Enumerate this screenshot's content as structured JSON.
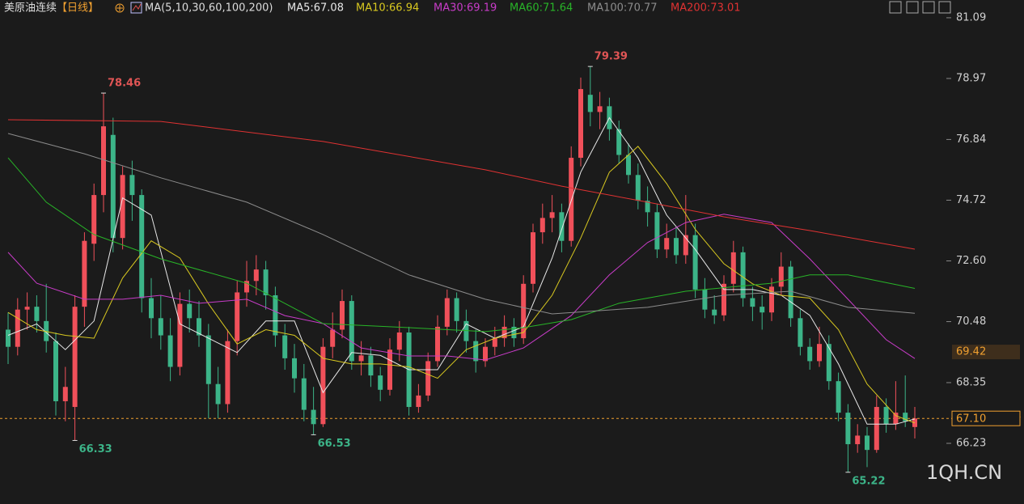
{
  "chart_data": {
    "type": "candlestick",
    "title": "美原油连续",
    "period": "【日线】",
    "ma_label": "MA(5,10,30,60,100,200)",
    "watermark": "1QH.CN",
    "up_color": "#f0505a",
    "down_color": "#3cb488",
    "ylim": [
      64.62,
      81.71
    ],
    "yticks": [
      81.09,
      78.97,
      76.84,
      74.72,
      {
        "value": 72.6,
        "label": "72.60"
      },
      70.48,
      68.35,
      66.23
    ],
    "grid": false,
    "candles": [
      [
        70.2,
        70.8,
        69.0,
        69.6
      ],
      [
        69.6,
        71.3,
        69.3,
        70.9
      ],
      [
        70.9,
        71.5,
        70.2,
        71.0
      ],
      [
        71.0,
        71.4,
        70.1,
        70.5
      ],
      [
        70.5,
        71.8,
        69.4,
        69.8
      ],
      [
        69.8,
        70.1,
        67.2,
        67.7
      ],
      [
        67.7,
        68.9,
        67.0,
        68.2
      ],
      [
        67.5,
        71.4,
        66.33,
        71.0
      ],
      [
        71.0,
        73.6,
        70.3,
        73.3
      ],
      [
        73.2,
        75.3,
        72.6,
        74.9
      ],
      [
        74.9,
        78.46,
        74.3,
        77.3
      ],
      [
        77.0,
        77.6,
        72.9,
        73.4
      ],
      [
        73.4,
        75.9,
        73.0,
        75.6
      ],
      [
        75.6,
        76.1,
        74.0,
        74.9
      ],
      [
        74.9,
        75.1,
        70.8,
        71.3
      ],
      [
        71.3,
        72.0,
        69.9,
        70.6
      ],
      [
        70.6,
        71.4,
        69.5,
        70.0
      ],
      [
        70.0,
        70.6,
        68.4,
        68.9
      ],
      [
        68.9,
        71.5,
        68.6,
        71.1
      ],
      [
        71.1,
        71.6,
        70.1,
        70.6
      ],
      [
        70.6,
        71.2,
        69.6,
        70.0
      ],
      [
        70.0,
        70.4,
        67.1,
        68.3
      ],
      [
        68.3,
        68.9,
        67.1,
        67.6
      ],
      [
        67.6,
        70.2,
        67.3,
        69.8
      ],
      [
        69.8,
        71.9,
        69.3,
        71.5
      ],
      [
        71.5,
        72.6,
        71.0,
        71.9
      ],
      [
        71.9,
        72.8,
        71.4,
        72.3
      ],
      [
        72.3,
        72.6,
        70.9,
        71.4
      ],
      [
        71.4,
        71.7,
        69.6,
        70.0
      ],
      [
        70.0,
        70.4,
        68.8,
        69.2
      ],
      [
        69.2,
        69.7,
        68.0,
        68.5
      ],
      [
        68.5,
        69.0,
        67.0,
        67.4
      ],
      [
        67.4,
        68.2,
        66.53,
        66.9
      ],
      [
        66.9,
        69.9,
        66.8,
        69.6
      ],
      [
        69.6,
        70.8,
        69.2,
        70.2
      ],
      [
        70.2,
        71.6,
        69.9,
        71.2
      ],
      [
        71.2,
        71.4,
        68.8,
        69.1
      ],
      [
        69.1,
        69.8,
        68.6,
        69.3
      ],
      [
        69.3,
        69.6,
        68.2,
        68.6
      ],
      [
        68.6,
        68.9,
        67.7,
        68.1
      ],
      [
        68.1,
        69.9,
        67.9,
        69.5
      ],
      [
        69.5,
        70.5,
        69.1,
        70.1
      ],
      [
        70.1,
        70.3,
        67.2,
        67.5
      ],
      [
        67.5,
        68.3,
        67.3,
        67.9
      ],
      [
        67.9,
        69.4,
        67.7,
        69.1
      ],
      [
        69.1,
        70.7,
        68.9,
        70.3
      ],
      [
        70.3,
        71.6,
        70.0,
        71.3
      ],
      [
        71.3,
        71.5,
        70.1,
        70.5
      ],
      [
        70.5,
        70.9,
        69.4,
        69.8
      ],
      [
        69.8,
        70.2,
        68.7,
        69.1
      ],
      [
        69.1,
        69.9,
        68.9,
        69.6
      ],
      [
        69.6,
        70.3,
        69.3,
        69.9
      ],
      [
        69.9,
        70.7,
        69.6,
        70.3
      ],
      [
        70.3,
        70.6,
        69.6,
        69.9
      ],
      [
        69.9,
        72.1,
        69.7,
        71.8
      ],
      [
        71.8,
        73.9,
        71.5,
        73.6
      ],
      [
        73.6,
        74.6,
        73.2,
        74.1
      ],
      [
        74.1,
        74.9,
        73.6,
        74.3
      ],
      [
        74.3,
        74.6,
        72.9,
        73.3
      ],
      [
        73.3,
        76.6,
        73.1,
        76.2
      ],
      [
        76.2,
        79.0,
        75.9,
        78.6
      ],
      [
        78.4,
        79.39,
        77.3,
        77.8
      ],
      [
        77.8,
        78.5,
        77.2,
        78.0
      ],
      [
        78.0,
        78.3,
        76.8,
        77.2
      ],
      [
        77.2,
        77.5,
        76.0,
        76.3
      ],
      [
        76.3,
        76.7,
        75.3,
        75.6
      ],
      [
        75.6,
        76.0,
        74.4,
        74.7
      ],
      [
        74.7,
        75.2,
        73.8,
        74.3
      ],
      [
        74.3,
        74.6,
        72.7,
        73.0
      ],
      [
        73.0,
        73.9,
        72.7,
        73.4
      ],
      [
        73.4,
        73.8,
        72.5,
        72.8
      ],
      [
        72.8,
        74.9,
        72.5,
        73.5
      ],
      [
        73.5,
        73.9,
        71.3,
        71.6
      ],
      [
        71.6,
        72.0,
        70.6,
        70.9
      ],
      [
        70.9,
        71.4,
        70.4,
        70.7
      ],
      [
        70.7,
        72.1,
        70.5,
        71.8
      ],
      [
        71.8,
        73.3,
        71.5,
        72.9
      ],
      [
        72.9,
        73.1,
        71.0,
        71.3
      ],
      [
        71.3,
        71.7,
        70.5,
        71.0
      ],
      [
        71.0,
        71.4,
        70.2,
        70.8
      ],
      [
        70.8,
        72.0,
        70.5,
        71.7
      ],
      [
        71.7,
        72.9,
        71.4,
        72.4
      ],
      [
        72.4,
        72.6,
        70.3,
        70.6
      ],
      [
        70.6,
        70.9,
        69.3,
        69.6
      ],
      [
        69.6,
        69.9,
        68.8,
        69.1
      ],
      [
        69.1,
        70.3,
        68.9,
        69.7
      ],
      [
        69.7,
        70.0,
        68.1,
        68.4
      ],
      [
        68.4,
        68.7,
        67.0,
        67.3
      ],
      [
        67.3,
        67.6,
        65.22,
        66.2
      ],
      [
        66.2,
        66.9,
        65.9,
        66.5
      ],
      [
        66.5,
        66.8,
        65.4,
        66.0
      ],
      [
        66.0,
        67.9,
        65.9,
        67.5
      ],
      [
        67.5,
        67.8,
        66.6,
        66.9
      ],
      [
        66.9,
        68.4,
        66.7,
        67.3
      ],
      [
        67.3,
        68.6,
        66.8,
        67.0
      ],
      [
        66.8,
        67.5,
        66.4,
        67.1
      ]
    ],
    "series": [
      {
        "name": "MA5:67.08",
        "color": "#e8e8e8",
        "x": [
          0,
          3,
          6,
          9,
          12,
          15,
          18,
          21,
          24,
          27,
          30,
          33,
          36,
          39,
          42,
          45,
          48,
          51,
          54,
          57,
          60,
          63,
          66,
          69,
          72,
          75,
          78,
          81,
          84,
          87,
          90,
          93,
          95
        ],
        "values": [
          70.0,
          70.4,
          69.5,
          70.5,
          74.8,
          74.2,
          70.4,
          69.9,
          69.4,
          70.5,
          70.5,
          68.0,
          69.4,
          69.3,
          68.8,
          68.8,
          70.4,
          69.9,
          70.3,
          72.7,
          75.7,
          77.6,
          76.2,
          74.2,
          73.0,
          71.6,
          71.6,
          71.4,
          70.7,
          69.0,
          66.9,
          66.9,
          67.08
        ]
      },
      {
        "name": "MA10:66.94",
        "color": "#d8c820",
        "x": [
          0,
          3,
          6,
          9,
          12,
          15,
          18,
          21,
          24,
          27,
          30,
          33,
          36,
          39,
          42,
          45,
          48,
          51,
          54,
          57,
          60,
          63,
          66,
          69,
          72,
          75,
          78,
          81,
          84,
          87,
          90,
          93,
          95
        ],
        "values": [
          70.8,
          70.2,
          70.0,
          69.9,
          72.0,
          73.3,
          72.7,
          71.1,
          69.7,
          70.2,
          70.0,
          69.2,
          69.0,
          69.0,
          68.9,
          68.5,
          69.5,
          69.9,
          70.1,
          71.4,
          73.4,
          75.7,
          76.6,
          75.3,
          73.7,
          72.5,
          71.8,
          71.4,
          71.3,
          70.2,
          68.3,
          67.2,
          66.94
        ]
      },
      {
        "name": "MA30:69.19",
        "color": "#c83cc8",
        "x": [
          0,
          3,
          8,
          12,
          16,
          20,
          25,
          29,
          33,
          37,
          42,
          46,
          50,
          54,
          59,
          63,
          67,
          71,
          75,
          80,
          84,
          88,
          92,
          95
        ],
        "values": [
          72.9,
          71.82,
          71.26,
          71.26,
          71.4,
          71.12,
          71.26,
          70.69,
          70.41,
          69.56,
          69.28,
          69.28,
          69.14,
          69.56,
          70.69,
          72.11,
          73.24,
          73.94,
          74.23,
          73.94,
          72.67,
          71.26,
          69.85,
          69.19
        ]
      },
      {
        "name": "MA60:71.64",
        "color": "#28b428",
        "x": [
          0,
          4,
          9,
          16,
          25,
          33,
          42,
          50,
          54,
          59,
          64,
          71,
          80,
          84,
          88,
          95
        ],
        "values": [
          76.2,
          74.65,
          73.52,
          72.67,
          71.82,
          70.41,
          70.27,
          70.13,
          70.27,
          70.55,
          71.12,
          71.54,
          71.82,
          72.11,
          72.11,
          71.64
        ]
      },
      {
        "name": "MA100:70.77",
        "color": "#8c8c8c",
        "x": [
          0,
          8,
          16,
          25,
          33,
          42,
          50,
          57,
          67,
          75,
          82,
          88,
          95
        ],
        "values": [
          77.05,
          76.34,
          75.5,
          74.65,
          73.52,
          72.11,
          71.26,
          70.75,
          70.98,
          71.4,
          71.54,
          70.98,
          70.77
        ]
      },
      {
        "name": "MA200:73.01",
        "color": "#e03232",
        "x": [
          0,
          16,
          33,
          50,
          58,
          67,
          75,
          84,
          95
        ],
        "values": [
          77.53,
          77.47,
          76.77,
          75.78,
          75.21,
          74.65,
          74.14,
          73.66,
          73.01
        ]
      }
    ],
    "annotations": {
      "highs": [
        78.46,
        79.39
      ],
      "lows": [
        66.33,
        66.53,
        65.22
      ]
    },
    "marker_price": {
      "value": 69.42,
      "label": "69.42"
    },
    "current_price": {
      "value": 67.1,
      "label": "67.10"
    }
  }
}
